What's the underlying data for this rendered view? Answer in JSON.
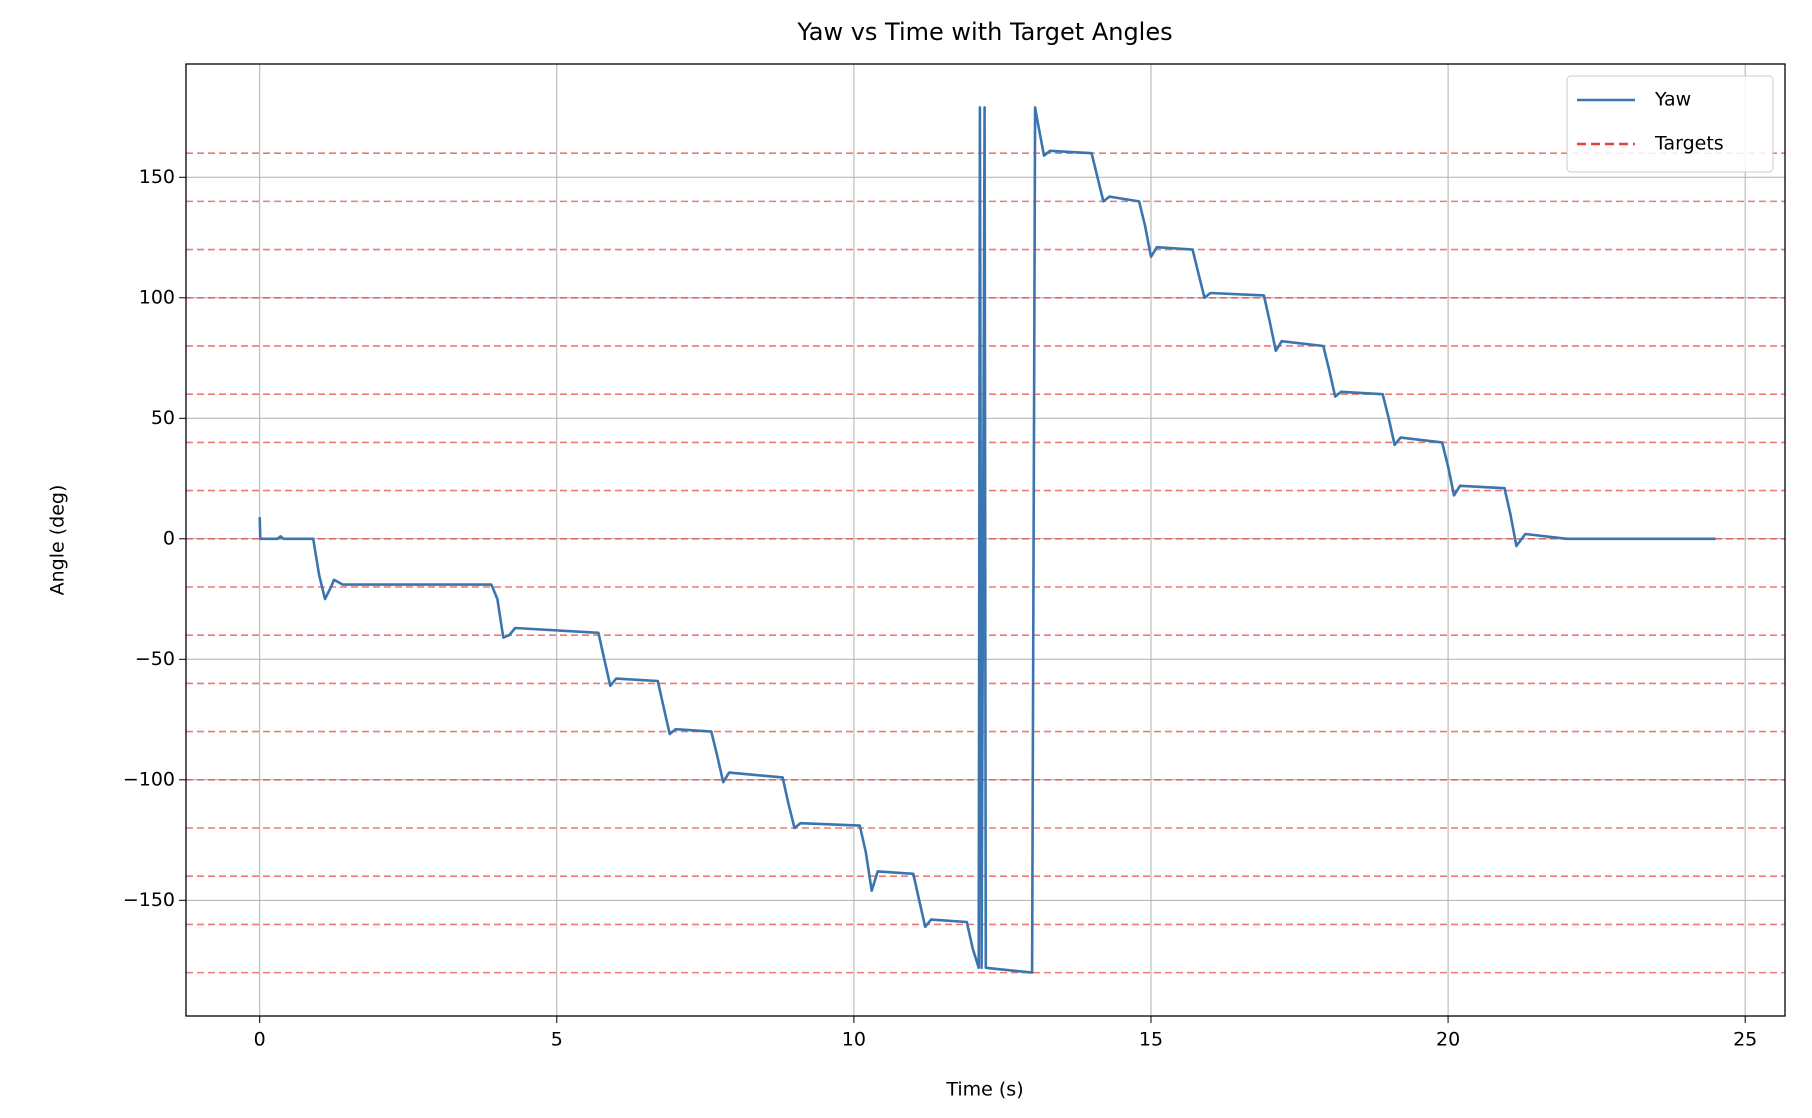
{
  "chart_data": {
    "type": "line",
    "title": "Yaw vs Time with Target Angles",
    "x_label": "Time (s)",
    "y_label": "Angle (deg)",
    "x": [
      0,
      0.01,
      0.3,
      0.35,
      0.4,
      0.9,
      1.0,
      1.1,
      1.2,
      1.25,
      1.4,
      3.9,
      4.0,
      4.1,
      4.2,
      4.3,
      5.7,
      5.8,
      5.9,
      6.0,
      6.7,
      6.8,
      6.9,
      7.0,
      7.6,
      7.7,
      7.8,
      7.9,
      8.8,
      8.9,
      9.0,
      9.1,
      10.1,
      10.2,
      10.3,
      10.4,
      11.0,
      11.1,
      11.2,
      11.3,
      11.9,
      12.0,
      12.1,
      12.12,
      12.15,
      12.2,
      12.22,
      13.0,
      13.05,
      13.1,
      13.2,
      13.3,
      14.0,
      14.1,
      14.2,
      14.3,
      14.8,
      14.9,
      15.0,
      15.1,
      15.7,
      15.8,
      15.9,
      16.0,
      16.9,
      17.0,
      17.1,
      17.2,
      17.9,
      18.0,
      18.1,
      18.2,
      18.9,
      19.0,
      19.1,
      19.2,
      19.9,
      20.0,
      20.1,
      20.2,
      20.95,
      21.05,
      21.15,
      21.3,
      22.0,
      24.5
    ],
    "series": [
      {
        "name": "Yaw",
        "color": "#3a75af",
        "values": [
          9,
          0,
          0,
          1,
          0,
          0,
          -15,
          -25,
          -20,
          -17,
          -19,
          -19,
          -25,
          -41,
          -40,
          -37,
          -39,
          -50,
          -61,
          -58,
          -59,
          -70,
          -81,
          -79,
          -80,
          -90,
          -101,
          -97,
          -99,
          -110,
          -120,
          -118,
          -119,
          -130,
          -146,
          -138,
          -139,
          -150,
          -161,
          -158,
          -159,
          -170,
          -178,
          179,
          -178,
          179,
          -178,
          -180,
          179,
          172,
          159,
          161,
          160,
          150,
          140,
          142,
          140,
          130,
          117,
          121,
          120,
          110,
          100,
          102,
          101,
          90,
          78,
          82,
          80,
          70,
          59,
          61,
          60,
          50,
          39,
          42,
          40,
          30,
          18,
          22,
          21,
          10,
          -3,
          2,
          0,
          0
        ]
      }
    ],
    "targets": {
      "name": "Targets",
      "color": "#e8403a",
      "values": [
        -180,
        -160,
        -140,
        -120,
        -100,
        -80,
        -60,
        -40,
        -20,
        0,
        20,
        40,
        60,
        80,
        100,
        120,
        140,
        160
      ]
    },
    "xlim": [
      -1.24,
      25.67
    ],
    "ylim": [
      -198,
      197
    ],
    "xticks": [
      0,
      5,
      10,
      15,
      20,
      25
    ],
    "yticks": [
      {
        "value": -150,
        "label": "−150"
      },
      {
        "value": -100,
        "label": "−100"
      },
      {
        "value": -50,
        "label": "−50"
      },
      0,
      50,
      100,
      150
    ],
    "grid": true,
    "legend": "upper right"
  }
}
